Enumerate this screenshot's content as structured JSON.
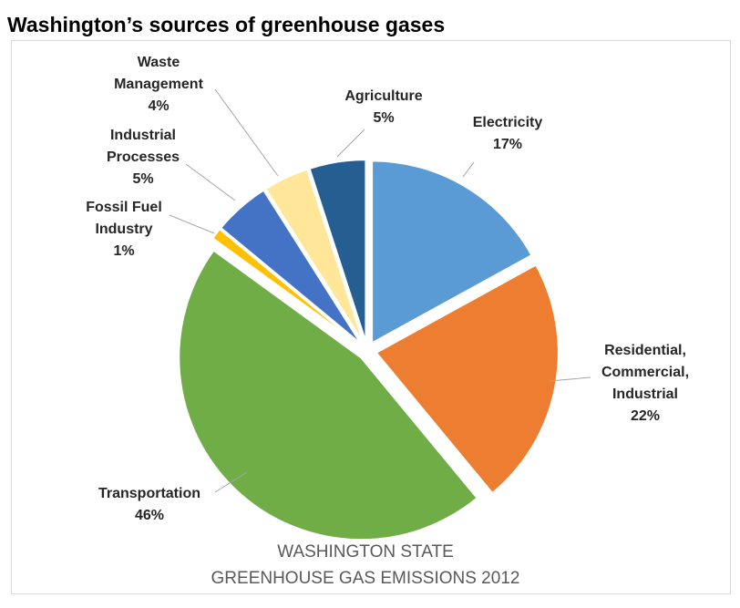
{
  "page_title": "Washington’s sources of greenhouse gases",
  "chart_data": {
    "type": "pie",
    "caption": [
      "WASHINGTON STATE",
      "GREENHOUSE GAS EMISSIONS 2012"
    ],
    "unit": "%",
    "slices": [
      {
        "name": "Electricity",
        "label_lines": [
          "Electricity"
        ],
        "value": 17,
        "color": "#5b9bd5"
      },
      {
        "name": "Residential, Commercial, Industrial",
        "label_lines": [
          "Residential,",
          "Commercial,",
          "Industrial"
        ],
        "value": 22,
        "color": "#ed7d31"
      },
      {
        "name": "Transportation",
        "label_lines": [
          "Transportation"
        ],
        "value": 46,
        "color": "#70ad47"
      },
      {
        "name": "Fossil Fuel Industry",
        "label_lines": [
          "Fossil Fuel",
          "Industry"
        ],
        "value": 1,
        "color": "#ffc000"
      },
      {
        "name": "Industrial Processes",
        "label_lines": [
          "Industrial",
          "Processes"
        ],
        "value": 5,
        "color": "#4472c4"
      },
      {
        "name": "Waste Management",
        "label_lines": [
          "Waste",
          "Management"
        ],
        "value": 4,
        "color": "#ffe699"
      },
      {
        "name": "Agriculture",
        "label_lines": [
          "Agriculture"
        ],
        "value": 5,
        "color": "#255e91"
      }
    ]
  }
}
